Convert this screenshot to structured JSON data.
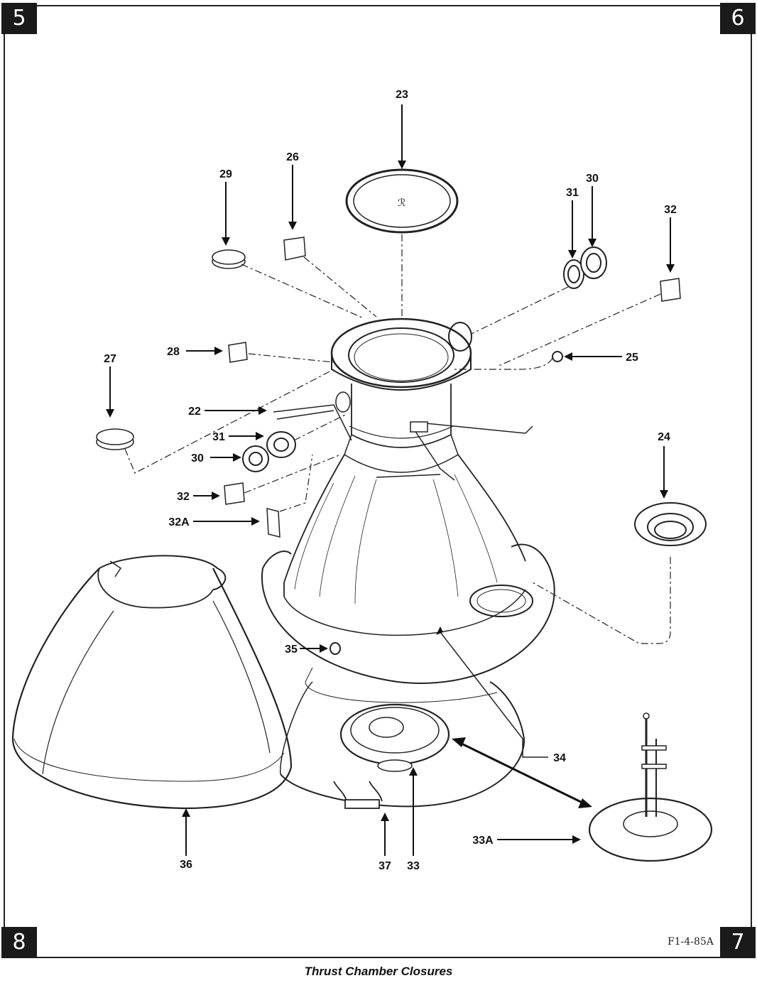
{
  "corners": {
    "top_left": "5",
    "top_right": "6",
    "bottom_right": "7",
    "bottom_left": "8"
  },
  "figure_id": "F1-4-85A",
  "caption": "Thrust Chamber Closures",
  "callouts": {
    "c23": "23",
    "c26": "26",
    "c29": "29",
    "c30_top": "30",
    "c31_top": "31",
    "c32_top": "32",
    "c25": "25",
    "c28": "28",
    "c27": "27",
    "c22": "22",
    "c31_left": "31",
    "c30_left": "30",
    "c32_left": "32",
    "c32a": "32A",
    "c24": "24",
    "c35": "35",
    "c34": "34",
    "c36": "36",
    "c37": "37",
    "c33": "33",
    "c33a": "33A"
  }
}
